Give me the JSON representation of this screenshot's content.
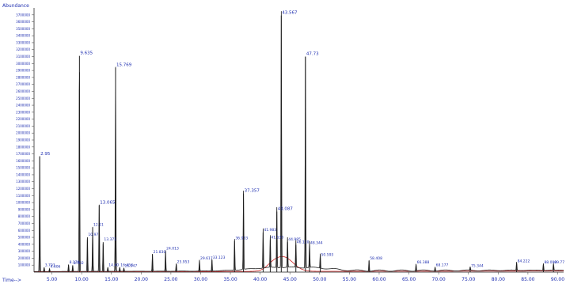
{
  "chart_data": {
    "type": "line",
    "title": "",
    "ylabel": "Abundance",
    "xlabel": "Time-->",
    "xlim": [
      2,
      91
    ],
    "ylim": [
      0,
      3800000
    ],
    "grid": false,
    "colors": {
      "baseline": "#1f1f1f",
      "secondary": "#d02020",
      "peak_labels": "#1f2fb0",
      "axes": "#555555",
      "ticks_text": "#1f2fb0"
    },
    "x_ticks": [
      "5.00",
      "10.00",
      "15.00",
      "20.00",
      "25.00",
      "30.00",
      "35.00",
      "40.00",
      "45.00",
      "50.00",
      "55.00",
      "60.00",
      "65.00",
      "70.00",
      "75.00",
      "80.00",
      "85.00",
      "90.00"
    ],
    "y_ticks": [
      "100000",
      "200000",
      "300000",
      "400000",
      "500000",
      "600000",
      "700000",
      "800000",
      "900000",
      "1000000",
      "1100000",
      "1200000",
      "1300000",
      "1400000",
      "1500000",
      "1600000",
      "1700000",
      "1800000",
      "1900000",
      "2000000",
      "2100000",
      "2200000",
      "2300000",
      "2400000",
      "2500000",
      "2600000",
      "2700000",
      "2800000",
      "2900000",
      "3000000",
      "3100000",
      "3200000",
      "3300000",
      "3400000",
      "3500000",
      "3600000",
      "3700000"
    ],
    "y_tick_values": [
      100000,
      200000,
      300000,
      400000,
      500000,
      600000,
      700000,
      800000,
      900000,
      1000000,
      1100000,
      1200000,
      1300000,
      1400000,
      1500000,
      1600000,
      1700000,
      1800000,
      1900000,
      2000000,
      2100000,
      2200000,
      2300000,
      2400000,
      2500000,
      2600000,
      2700000,
      2800000,
      2900000,
      3000000,
      3100000,
      3200000,
      3300000,
      3400000,
      3500000,
      3600000,
      3700000
    ],
    "peaks": [
      {
        "x": 2.95,
        "y": 1660000,
        "label": "2.95"
      },
      {
        "x": 3.7,
        "y": 60000,
        "label": "3.703"
      },
      {
        "x": 4.6,
        "y": 40000,
        "label": "4.606"
      },
      {
        "x": 7.8,
        "y": 100000,
        "label": "8.179"
      },
      {
        "x": 8.5,
        "y": 90000,
        "label": "8.502"
      },
      {
        "x": 9.63,
        "y": 3110000,
        "label": "9.635"
      },
      {
        "x": 10.97,
        "y": 500000,
        "label": "10.97"
      },
      {
        "x": 11.85,
        "y": 640000,
        "label": "12.11"
      },
      {
        "x": 12.95,
        "y": 960000,
        "label": "13.065"
      },
      {
        "x": 13.62,
        "y": 430000,
        "label": "13.371"
      },
      {
        "x": 14.4,
        "y": 60000,
        "label": "14.40"
      },
      {
        "x": 15.7,
        "y": 2940000,
        "label": "15.769"
      },
      {
        "x": 16.4,
        "y": 60000,
        "label": "16.453"
      },
      {
        "x": 17.1,
        "y": 50000,
        "label": "16.947"
      },
      {
        "x": 21.9,
        "y": 250000,
        "label": "21.830"
      },
      {
        "x": 24.1,
        "y": 300000,
        "label": "24.013"
      },
      {
        "x": 25.9,
        "y": 110000,
        "label": "25.953"
      },
      {
        "x": 29.8,
        "y": 160000,
        "label": "29.617"
      },
      {
        "x": 31.9,
        "y": 170000,
        "label": "33.123"
      },
      {
        "x": 35.7,
        "y": 450000,
        "label": "36.933"
      },
      {
        "x": 37.2,
        "y": 1130000,
        "label": "37.357"
      },
      {
        "x": 40.5,
        "y": 570000,
        "label": "41.983"
      },
      {
        "x": 41.7,
        "y": 460000,
        "label": "41.533"
      },
      {
        "x": 42.8,
        "y": 870000,
        "label": "43.087"
      },
      {
        "x": 43.55,
        "y": 3690000,
        "label": "43.567"
      },
      {
        "x": 44.6,
        "y": 430000,
        "label": "44.985"
      },
      {
        "x": 46.0,
        "y": 390000,
        "label": "46.120"
      },
      {
        "x": 47.61,
        "y": 3100000,
        "label": "47.73"
      },
      {
        "x": 48.3,
        "y": 380000,
        "label": "48.344"
      },
      {
        "x": 50.1,
        "y": 210000,
        "label": "50.593"
      },
      {
        "x": 58.3,
        "y": 160000,
        "label": "58.408"
      },
      {
        "x": 66.2,
        "y": 100000,
        "label": "66.388"
      },
      {
        "x": 69.4,
        "y": 60000,
        "label": "68.177"
      },
      {
        "x": 75.3,
        "y": 50000,
        "label": "75.344"
      },
      {
        "x": 83.1,
        "y": 120000,
        "label": "84.222"
      },
      {
        "x": 87.6,
        "y": 100000,
        "label": "88.090"
      },
      {
        "x": 89.3,
        "y": 100000,
        "label": "89.77"
      }
    ]
  }
}
